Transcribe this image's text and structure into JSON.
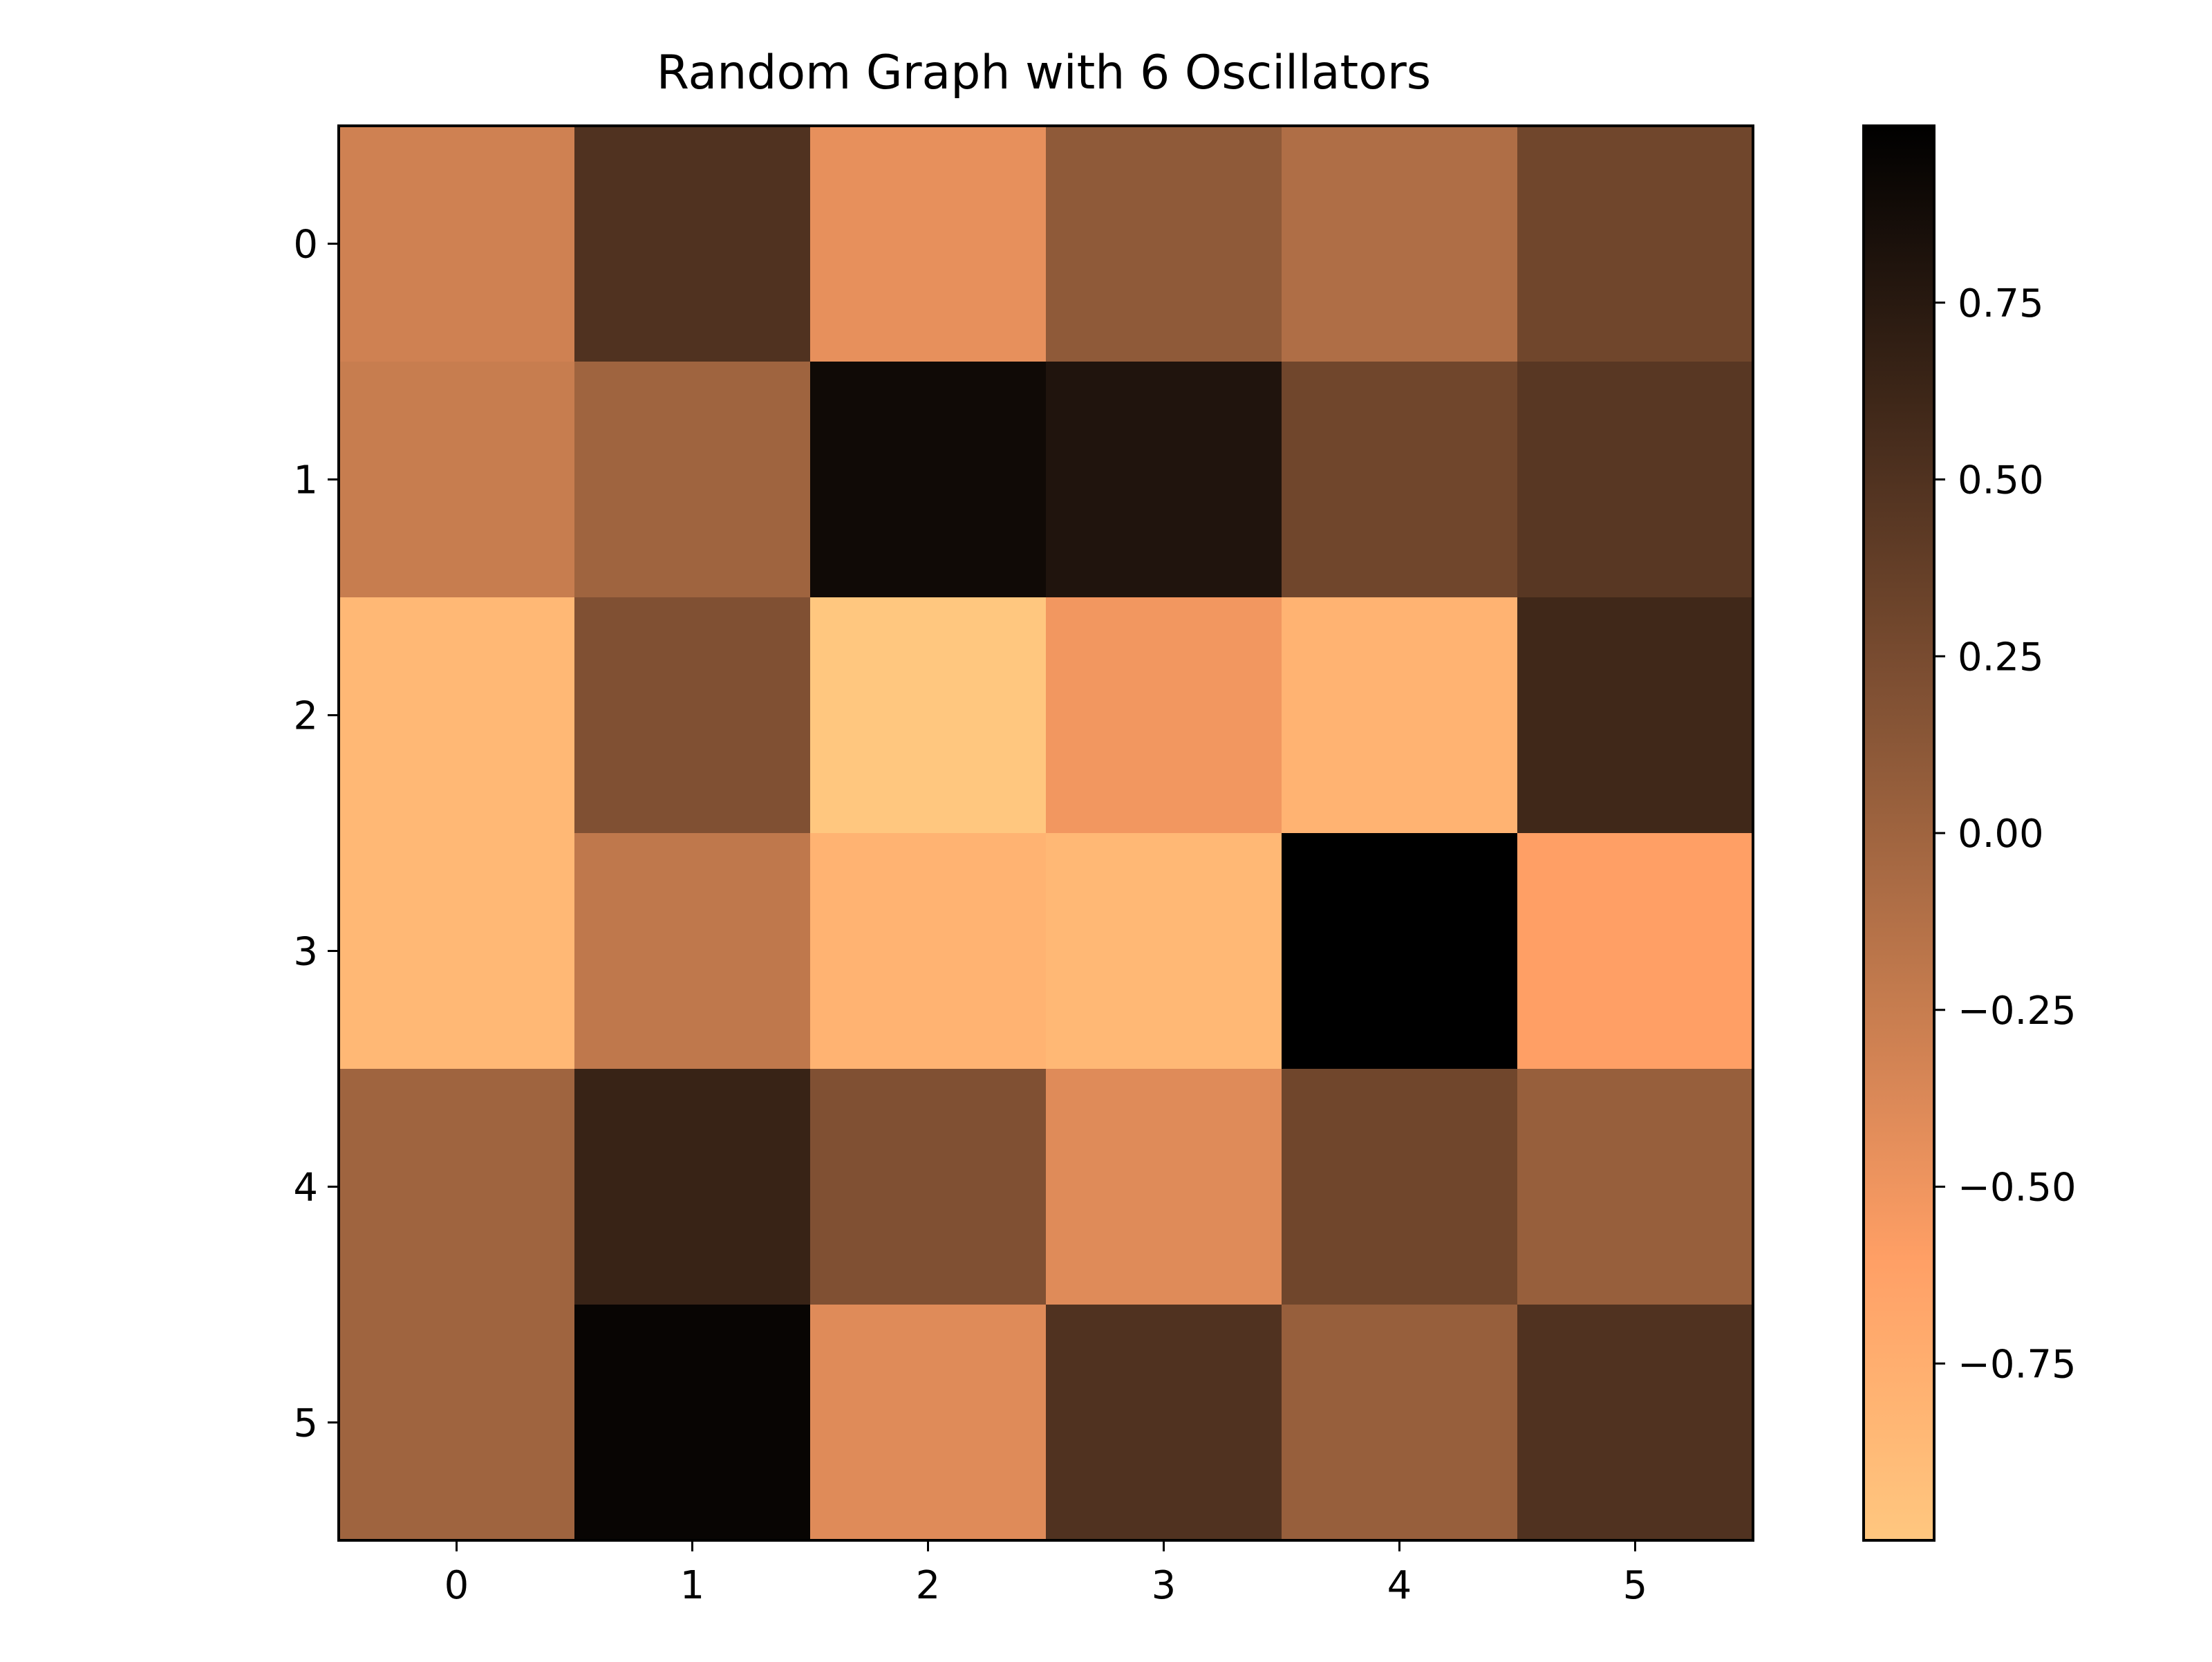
{
  "chart_data": {
    "type": "heatmap",
    "title": "Random Graph with 6 Oscillators",
    "xlabel": "",
    "ylabel": "",
    "x_categories": [
      "0",
      "1",
      "2",
      "3",
      "4",
      "5"
    ],
    "y_categories": [
      "0",
      "1",
      "2",
      "3",
      "4",
      "5"
    ],
    "values": [
      [
        -0.3,
        0.5,
        -0.45,
        0.1,
        -0.1,
        0.3
      ],
      [
        -0.25,
        0.0,
        0.9,
        0.8,
        0.3,
        0.45
      ],
      [
        -0.85,
        0.2,
        -1.0,
        -0.52,
        -0.8,
        0.6
      ],
      [
        -0.85,
        -0.2,
        -0.8,
        -0.85,
        1.0,
        -0.6
      ],
      [
        0.0,
        0.65,
        0.2,
        -0.4,
        0.3,
        0.05
      ],
      [
        0.0,
        0.95,
        -0.4,
        0.5,
        0.05,
        0.5
      ]
    ],
    "colormap": "copper_r",
    "colorbar": {
      "vmin": -1.0,
      "vmax": 1.0,
      "ticks": [
        -0.75,
        -0.5,
        -0.25,
        0.0,
        0.25,
        0.5,
        0.75
      ],
      "tick_labels": [
        "−0.75",
        "−0.50",
        "−0.25",
        "0.00",
        "0.25",
        "0.50",
        "0.75"
      ]
    },
    "grid": false
  }
}
